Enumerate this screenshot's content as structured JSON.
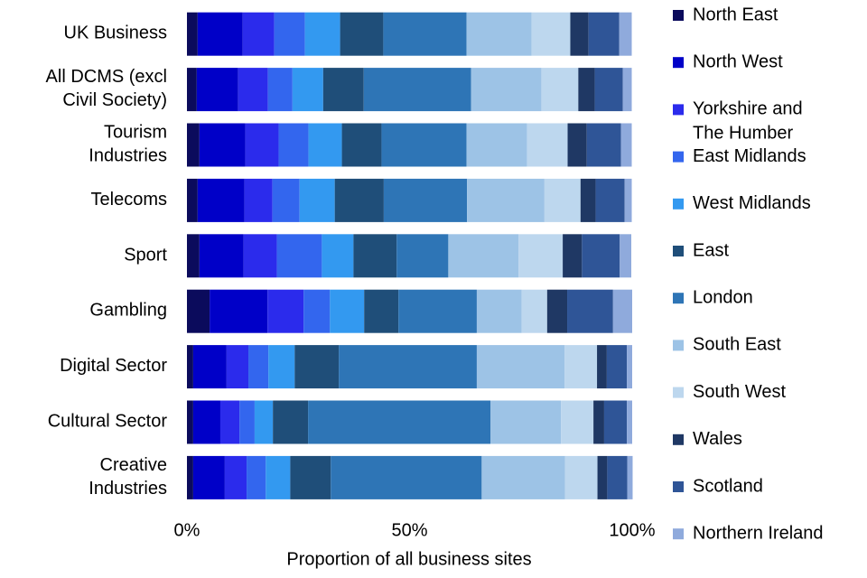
{
  "chart_data": {
    "type": "stacked-bar-horizontal",
    "x_label": "Proportion of all business sites",
    "categories": [
      "UK Business",
      "All DCMS (excl Civil Society)",
      "Tourism Industries",
      "Telecoms",
      "Sport",
      "Gambling",
      "Digital Sector",
      "Cultural Sector",
      "Creative Industries"
    ],
    "series": [
      {
        "name": "North East",
        "color": "#0b0b5c",
        "values": [
          2.4,
          2.2,
          2.8,
          2.4,
          2.8,
          5.1,
          1.4,
          1.4,
          1.4
        ]
      },
      {
        "name": "North West",
        "color": "#0000c8",
        "values": [
          10.1,
          9.3,
          10.3,
          10.5,
          9.9,
          13.0,
          7.5,
          6.1,
          7.1
        ]
      },
      {
        "name": "Yorkshire and The Humber",
        "color": "#2b2bec",
        "values": [
          7.1,
          6.7,
          7.5,
          6.3,
          7.5,
          8.1,
          4.9,
          4.3,
          4.9
        ]
      },
      {
        "name": "East Midlands",
        "color": "#3366ee",
        "values": [
          6.9,
          5.5,
          6.7,
          6.1,
          10.1,
          5.9,
          4.5,
          3.4,
          4.3
        ]
      },
      {
        "name": "West Midlands",
        "color": "#3399f0",
        "values": [
          7.9,
          6.9,
          7.5,
          7.9,
          7.1,
          7.7,
          5.9,
          4.1,
          5.5
        ]
      },
      {
        "name": "East",
        "color": "#1f4e79",
        "values": [
          9.7,
          9.1,
          8.9,
          11.0,
          9.7,
          7.7,
          9.9,
          7.9,
          9.1
        ]
      },
      {
        "name": "London",
        "color": "#2e75b6",
        "values": [
          18.7,
          24.1,
          19.1,
          18.7,
          11.6,
          17.6,
          31.0,
          41.0,
          33.9
        ]
      },
      {
        "name": "South East",
        "color": "#9dc3e6",
        "values": [
          14.6,
          15.8,
          13.6,
          17.4,
          15.8,
          10.1,
          19.7,
          15.8,
          18.7
        ]
      },
      {
        "name": "South West",
        "color": "#bdd7ee",
        "values": [
          8.7,
          8.3,
          9.1,
          8.1,
          9.9,
          5.7,
          7.3,
          7.3,
          7.3
        ]
      },
      {
        "name": "Wales",
        "color": "#1f3864",
        "values": [
          4.1,
          3.7,
          4.3,
          3.4,
          4.3,
          4.5,
          2.2,
          2.4,
          2.2
        ]
      },
      {
        "name": "Scotland",
        "color": "#2f5597",
        "values": [
          6.9,
          6.3,
          7.7,
          6.5,
          8.5,
          10.3,
          4.5,
          5.1,
          4.5
        ]
      },
      {
        "name": "Northern Ireland",
        "color": "#8faadc",
        "values": [
          2.8,
          2.0,
          2.4,
          1.6,
          2.6,
          4.3,
          1.2,
          1.2,
          1.2
        ]
      }
    ],
    "xlim": [
      0,
      100
    ],
    "xticks": [
      {
        "value": 0,
        "label": "0%"
      },
      {
        "value": 50,
        "label": "50%"
      },
      {
        "value": 100,
        "label": "100%"
      }
    ],
    "grid": false,
    "legend": "right"
  }
}
